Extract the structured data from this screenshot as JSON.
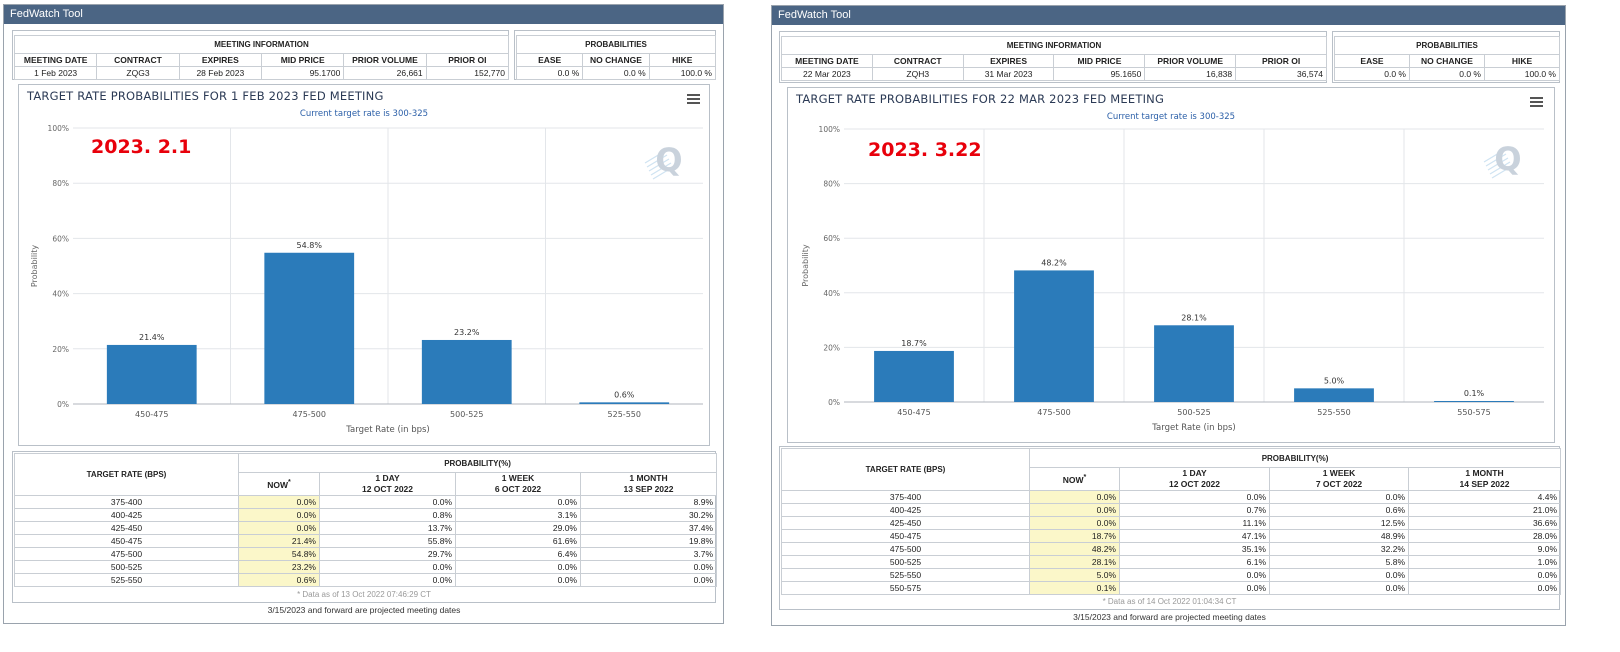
{
  "panels": [
    {
      "window_title": "FedWatch Tool",
      "meeting_info_header": "MEETING INFORMATION",
      "probabilities_header": "PROBABILITIES",
      "meeting_cols": [
        "MEETING DATE",
        "CONTRACT",
        "EXPIRES",
        "MID PRICE",
        "PRIOR VOLUME",
        "PRIOR OI"
      ],
      "meeting_vals": [
        "1 Feb 2023",
        "ZQG3",
        "28 Feb 2023",
        "95.1700",
        "26,661",
        "152,770"
      ],
      "prob_cols": [
        "EASE",
        "NO CHANGE",
        "HIKE"
      ],
      "prob_vals": [
        "0.0 %",
        "0.0 %",
        "100.0 %"
      ],
      "menu_icon": "hamburger-menu-icon",
      "watermark_icon": "q-logo-icon",
      "annotation": "2023. 2.1",
      "annotation_color": "#e8000b",
      "bar_color": "#2b7bba",
      "table": {
        "rate_header": "TARGET RATE (BPS)",
        "prob_header": "PROBABILITY(%)",
        "now_header": "NOW",
        "now_marker": "*",
        "cols": [
          {
            "top": "1 DAY",
            "bottom": "12 OCT 2022"
          },
          {
            "top": "1 WEEK",
            "bottom": "6 OCT 2022"
          },
          {
            "top": "1 MONTH",
            "bottom": "13 SEP 2022"
          }
        ],
        "rows": [
          {
            "rate": "375-400",
            "now": "0.0%",
            "d1": "0.0%",
            "w1": "0.0%",
            "m1": "8.9%"
          },
          {
            "rate": "400-425",
            "now": "0.0%",
            "d1": "0.8%",
            "w1": "3.1%",
            "m1": "30.2%"
          },
          {
            "rate": "425-450",
            "now": "0.0%",
            "d1": "13.7%",
            "w1": "29.0%",
            "m1": "37.4%"
          },
          {
            "rate": "450-475",
            "now": "21.4%",
            "d1": "55.8%",
            "w1": "61.6%",
            "m1": "19.8%"
          },
          {
            "rate": "475-500",
            "now": "54.8%",
            "d1": "29.7%",
            "w1": "6.4%",
            "m1": "3.7%"
          },
          {
            "rate": "500-525",
            "now": "23.2%",
            "d1": "0.0%",
            "w1": "0.0%",
            "m1": "0.0%"
          },
          {
            "rate": "525-550",
            "now": "0.6%",
            "d1": "0.0%",
            "w1": "0.0%",
            "m1": "0.0%"
          }
        ],
        "data_as_of": "* Data as of 13 Oct 2022 07:46:29 CT"
      },
      "footer_note": "3/15/2023 and forward are projected meeting dates"
    },
    {
      "window_title": "FedWatch Tool",
      "meeting_info_header": "MEETING INFORMATION",
      "probabilities_header": "PROBABILITIES",
      "meeting_cols": [
        "MEETING DATE",
        "CONTRACT",
        "EXPIRES",
        "MID PRICE",
        "PRIOR VOLUME",
        "PRIOR OI"
      ],
      "meeting_vals": [
        "22 Mar 2023",
        "ZQH3",
        "31 Mar 2023",
        "95.1650",
        "16,838",
        "36,574"
      ],
      "prob_cols": [
        "EASE",
        "NO CHANGE",
        "HIKE"
      ],
      "prob_vals": [
        "0.0 %",
        "0.0 %",
        "100.0 %"
      ],
      "menu_icon": "hamburger-menu-icon",
      "watermark_icon": "q-logo-icon",
      "annotation": "2023. 3.22",
      "annotation_color": "#e8000b",
      "bar_color": "#2b7bba",
      "table": {
        "rate_header": "TARGET RATE (BPS)",
        "prob_header": "PROBABILITY(%)",
        "now_header": "NOW",
        "now_marker": "*",
        "cols": [
          {
            "top": "1 DAY",
            "bottom": "12 OCT 2022"
          },
          {
            "top": "1 WEEK",
            "bottom": "7 OCT 2022"
          },
          {
            "top": "1 MONTH",
            "bottom": "14 SEP 2022"
          }
        ],
        "rows": [
          {
            "rate": "375-400",
            "now": "0.0%",
            "d1": "0.0%",
            "w1": "0.0%",
            "m1": "4.4%"
          },
          {
            "rate": "400-425",
            "now": "0.0%",
            "d1": "0.7%",
            "w1": "0.6%",
            "m1": "21.0%"
          },
          {
            "rate": "425-450",
            "now": "0.0%",
            "d1": "11.1%",
            "w1": "12.5%",
            "m1": "36.6%"
          },
          {
            "rate": "450-475",
            "now": "18.7%",
            "d1": "47.1%",
            "w1": "48.9%",
            "m1": "28.0%"
          },
          {
            "rate": "475-500",
            "now": "48.2%",
            "d1": "35.1%",
            "w1": "32.2%",
            "m1": "9.0%"
          },
          {
            "rate": "500-525",
            "now": "28.1%",
            "d1": "6.1%",
            "w1": "5.8%",
            "m1": "1.0%"
          },
          {
            "rate": "525-550",
            "now": "5.0%",
            "d1": "0.0%",
            "w1": "0.0%",
            "m1": "0.0%"
          },
          {
            "rate": "550-575",
            "now": "0.1%",
            "d1": "0.0%",
            "w1": "0.0%",
            "m1": "0.0%"
          }
        ],
        "data_as_of": "* Data as of 14 Oct 2022 01:04:34 CT"
      },
      "footer_note": "3/15/2023 and forward are projected meeting dates"
    }
  ],
  "chart_data": [
    {
      "type": "bar",
      "title": "TARGET RATE PROBABILITIES FOR 1 FEB 2023 FED MEETING",
      "subtitle": "Current target rate is 300-325",
      "xlabel": "Target Rate (in bps)",
      "ylabel": "Probability",
      "categories": [
        "450-475",
        "475-500",
        "500-525",
        "525-550"
      ],
      "values": [
        21.4,
        54.8,
        23.2,
        0.6
      ],
      "data_labels": [
        "21.4%",
        "54.8%",
        "23.2%",
        "0.6%"
      ],
      "ylim": [
        0,
        100
      ],
      "yticks": [
        0,
        20,
        40,
        60,
        80,
        100
      ],
      "ytick_labels": [
        "0%",
        "20%",
        "40%",
        "60%",
        "80%",
        "100%"
      ],
      "grid": true
    },
    {
      "type": "bar",
      "title": "TARGET RATE PROBABILITIES FOR 22 MAR 2023 FED MEETING",
      "subtitle": "Current target rate is 300-325",
      "xlabel": "Target Rate (in bps)",
      "ylabel": "Probability",
      "categories": [
        "450-475",
        "475-500",
        "500-525",
        "525-550",
        "550-575"
      ],
      "values": [
        18.7,
        48.2,
        28.1,
        5.0,
        0.1
      ],
      "data_labels": [
        "18.7%",
        "48.2%",
        "28.1%",
        "5.0%",
        "0.1%"
      ],
      "ylim": [
        0,
        100
      ],
      "yticks": [
        0,
        20,
        40,
        60,
        80,
        100
      ],
      "ytick_labels": [
        "0%",
        "20%",
        "40%",
        "60%",
        "80%",
        "100%"
      ],
      "grid": true
    }
  ]
}
